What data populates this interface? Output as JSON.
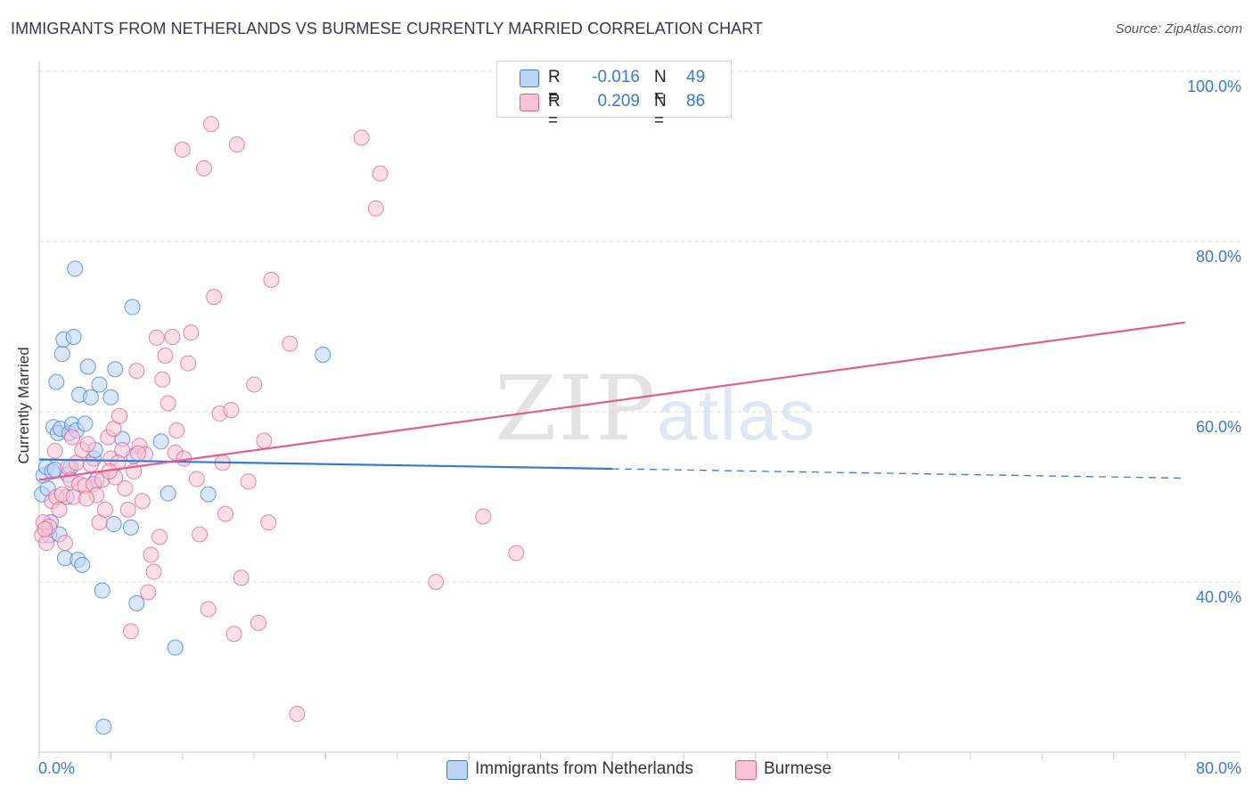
{
  "title": "IMMIGRANTS FROM NETHERLANDS VS BURMESE CURRENTLY MARRIED CORRELATION CHART",
  "source": "Source: ZipAtlas.com",
  "watermark": {
    "zip": "ZIP",
    "atlas": "atlas"
  },
  "colors": {
    "blue": "#3a78d6",
    "blue_fill": "#bcd4f5",
    "pink": "#e35d8c",
    "pink_fill": "#f8c3d3",
    "grid": "#d9d9d9",
    "axis": "#cccccc"
  },
  "legend": {
    "rows": [
      {
        "r_label": "R =",
        "r_value": "-0.016",
        "n_label": "N =",
        "n_value": "49"
      },
      {
        "r_label": "R =",
        "r_value": "0.209",
        "n_label": "N =",
        "n_value": "86"
      }
    ]
  },
  "bottom_legend": [
    "Immigrants from Netherlands",
    "Burmese"
  ],
  "chart_data": {
    "type": "scatter",
    "ylabel": "Currently Married",
    "xlabel": "",
    "xlim": [
      0,
      80
    ],
    "ylim": [
      20,
      100
    ],
    "x_tick_labels": [
      "0.0%",
      "80.0%"
    ],
    "y_ticks": [
      40,
      60,
      80,
      100
    ],
    "y_tick_labels": [
      "40.0%",
      "60.0%",
      "80.0%",
      "100.0%"
    ],
    "grid": "horizontal dashed",
    "series": [
      {
        "name": "Immigrants from Netherlands",
        "color": "#3a78d6",
        "trend": {
          "x0": 0,
          "y0": 54.4,
          "x1": 40,
          "y1": 53.3,
          "dash_to_x": 80,
          "dash_to_y": 52.2
        },
        "points": [
          [
            0.2,
            50.3
          ],
          [
            0.3,
            52.5
          ],
          [
            0.5,
            53.5
          ],
          [
            0.6,
            51.0
          ],
          [
            0.7,
            45.5
          ],
          [
            0.9,
            53.0
          ],
          [
            1.0,
            58.2
          ],
          [
            1.1,
            53.2
          ],
          [
            1.2,
            63.5
          ],
          [
            1.3,
            57.5
          ],
          [
            1.5,
            58.0
          ],
          [
            1.6,
            66.8
          ],
          [
            1.7,
            68.5
          ],
          [
            1.8,
            42.8
          ],
          [
            1.9,
            50.0
          ],
          [
            2.0,
            52.6
          ],
          [
            2.1,
            57.5
          ],
          [
            2.2,
            53.5
          ],
          [
            2.3,
            58.5
          ],
          [
            2.4,
            68.8
          ],
          [
            2.5,
            76.8
          ],
          [
            2.6,
            57.8
          ],
          [
            2.7,
            42.6
          ],
          [
            2.8,
            62.0
          ],
          [
            3.0,
            42.0
          ],
          [
            3.2,
            58.6
          ],
          [
            3.4,
            65.3
          ],
          [
            3.6,
            61.7
          ],
          [
            3.8,
            54.5
          ],
          [
            3.9,
            55.5
          ],
          [
            4.2,
            63.2
          ],
          [
            4.4,
            39.0
          ],
          [
            4.5,
            23.0
          ],
          [
            5.0,
            61.7
          ],
          [
            5.2,
            46.8
          ],
          [
            5.3,
            65.0
          ],
          [
            5.8,
            56.8
          ],
          [
            6.4,
            46.4
          ],
          [
            6.5,
            72.3
          ],
          [
            6.6,
            54.8
          ],
          [
            6.8,
            37.5
          ],
          [
            8.5,
            56.5
          ],
          [
            9.0,
            50.4
          ],
          [
            9.5,
            32.3
          ],
          [
            11.8,
            50.3
          ],
          [
            19.8,
            66.7
          ],
          [
            4.0,
            52.0
          ],
          [
            1.4,
            45.6
          ],
          [
            0.8,
            47.0
          ]
        ]
      },
      {
        "name": "Burmese",
        "color": "#e35d8c",
        "trend": {
          "x0": 0,
          "y0": 52.0,
          "x1": 80,
          "y1": 70.5
        },
        "points": [
          [
            0.2,
            45.5
          ],
          [
            0.3,
            47.0
          ],
          [
            0.5,
            44.6
          ],
          [
            0.7,
            46.5
          ],
          [
            0.9,
            49.5
          ],
          [
            1.2,
            50.0
          ],
          [
            1.4,
            48.5
          ],
          [
            1.6,
            50.3
          ],
          [
            1.8,
            44.6
          ],
          [
            2.0,
            53.5
          ],
          [
            2.2,
            52.0
          ],
          [
            2.4,
            50.0
          ],
          [
            2.6,
            54.0
          ],
          [
            2.8,
            51.5
          ],
          [
            3.0,
            55.5
          ],
          [
            3.2,
            51.3
          ],
          [
            3.4,
            56.2
          ],
          [
            3.6,
            53.8
          ],
          [
            3.8,
            51.5
          ],
          [
            4.0,
            50.2
          ],
          [
            4.2,
            47.0
          ],
          [
            4.4,
            52.0
          ],
          [
            4.6,
            48.5
          ],
          [
            4.8,
            57.0
          ],
          [
            5.0,
            54.5
          ],
          [
            5.2,
            58.0
          ],
          [
            5.3,
            52.3
          ],
          [
            5.6,
            59.5
          ],
          [
            5.8,
            55.5
          ],
          [
            6.0,
            51.0
          ],
          [
            6.2,
            48.5
          ],
          [
            6.4,
            34.2
          ],
          [
            6.6,
            53.0
          ],
          [
            6.8,
            64.8
          ],
          [
            7.0,
            56.0
          ],
          [
            7.2,
            49.5
          ],
          [
            7.4,
            55.0
          ],
          [
            7.6,
            38.8
          ],
          [
            7.8,
            43.2
          ],
          [
            8.0,
            41.2
          ],
          [
            8.2,
            68.7
          ],
          [
            8.4,
            45.3
          ],
          [
            8.6,
            63.8
          ],
          [
            8.8,
            66.6
          ],
          [
            9.0,
            61.0
          ],
          [
            9.3,
            68.8
          ],
          [
            9.6,
            57.8
          ],
          [
            10.0,
            90.8
          ],
          [
            10.4,
            65.7
          ],
          [
            10.6,
            69.3
          ],
          [
            11.0,
            52.1
          ],
          [
            11.2,
            45.6
          ],
          [
            11.5,
            88.6
          ],
          [
            11.8,
            36.8
          ],
          [
            12.0,
            93.8
          ],
          [
            12.2,
            73.5
          ],
          [
            12.6,
            59.8
          ],
          [
            12.8,
            54.0
          ],
          [
            13.0,
            48.0
          ],
          [
            13.4,
            60.2
          ],
          [
            13.6,
            33.9
          ],
          [
            13.8,
            91.4
          ],
          [
            14.1,
            40.5
          ],
          [
            14.6,
            51.8
          ],
          [
            15.0,
            63.2
          ],
          [
            15.3,
            35.2
          ],
          [
            15.7,
            56.6
          ],
          [
            16.0,
            47.0
          ],
          [
            16.2,
            75.5
          ],
          [
            17.5,
            68.0
          ],
          [
            18.0,
            24.5
          ],
          [
            22.5,
            92.2
          ],
          [
            23.5,
            83.9
          ],
          [
            23.8,
            88.0
          ],
          [
            27.7,
            40.0
          ],
          [
            31.0,
            47.7
          ],
          [
            33.3,
            43.4
          ],
          [
            2.3,
            57.0
          ],
          [
            5.5,
            54.0
          ],
          [
            6.9,
            55.1
          ],
          [
            9.5,
            55.2
          ],
          [
            10.1,
            54.5
          ],
          [
            1.1,
            55.4
          ],
          [
            3.3,
            49.8
          ],
          [
            4.9,
            53.0
          ],
          [
            0.4,
            46.2
          ]
        ]
      }
    ]
  }
}
